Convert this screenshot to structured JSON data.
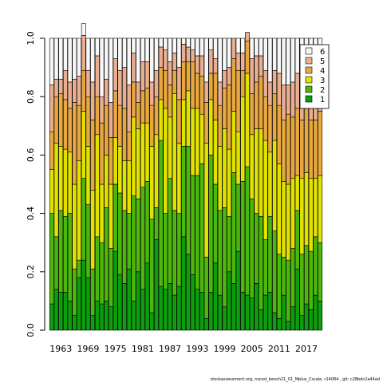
{
  "chart_data": {
    "type": "bar",
    "stacked": true,
    "x": [
      1961,
      1962,
      1963,
      1964,
      1965,
      1966,
      1967,
      1968,
      1969,
      1970,
      1971,
      1972,
      1973,
      1974,
      1975,
      1976,
      1977,
      1978,
      1979,
      1980,
      1981,
      1982,
      1983,
      1984,
      1985,
      1986,
      1987,
      1988,
      1989,
      1990,
      1991,
      1992,
      1993,
      1994,
      1995,
      1996,
      1997,
      1998,
      1999,
      2000,
      2001,
      2002,
      2003,
      2004,
      2005,
      2006,
      2007,
      2008,
      2009,
      2010,
      2011,
      2012,
      2013,
      2014,
      2015,
      2016,
      2017,
      2018,
      2019,
      2020
    ],
    "x_tick_labels": [
      "1963",
      "1969",
      "1975",
      "1981",
      "1987",
      "1993",
      "1999",
      "2005",
      "2011",
      "2017"
    ],
    "ylim": [
      0,
      1
    ],
    "y_ticks": [
      "0.0",
      "0.2",
      "0.4",
      "0.6",
      "0.8",
      "1.0"
    ],
    "legend_position": "top-right",
    "grid": false,
    "series": [
      {
        "name": "1",
        "color": "#0c9e0c",
        "values": [
          0.09,
          0.14,
          0.13,
          0.13,
          0.1,
          0.05,
          0.18,
          0.24,
          0.18,
          0.05,
          0.1,
          0.09,
          0.1,
          0.08,
          0.27,
          0.19,
          0.16,
          0.21,
          0.1,
          0.2,
          0.14,
          0.23,
          0.06,
          0.31,
          0.15,
          0.14,
          0.16,
          0.12,
          0.15,
          0.32,
          0.26,
          0.19,
          0.14,
          0.13,
          0.04,
          0.13,
          0.23,
          0.12,
          0.08,
          0.2,
          0.16,
          0.27,
          0.13,
          0.12,
          0.11,
          0.16,
          0.07,
          0.12,
          0.13,
          0.06,
          0.04,
          0.12,
          0.03,
          0.08,
          0.21,
          0.05,
          0.09,
          0.07,
          0.12,
          0.1
        ]
      },
      {
        "name": "2",
        "color": "#4db80b",
        "values": [
          0.31,
          0.18,
          0.28,
          0.26,
          0.3,
          0.16,
          0.06,
          0.28,
          0.25,
          0.16,
          0.22,
          0.21,
          0.32,
          0.2,
          0.23,
          0.28,
          0.25,
          0.19,
          0.36,
          0.25,
          0.35,
          0.28,
          0.32,
          0.11,
          0.5,
          0.26,
          0.36,
          0.29,
          0.25,
          0.31,
          0.37,
          0.34,
          0.39,
          0.44,
          0.21,
          0.47,
          0.27,
          0.29,
          0.34,
          0.19,
          0.38,
          0.23,
          0.38,
          0.44,
          0.34,
          0.24,
          0.32,
          0.19,
          0.26,
          0.28,
          0.22,
          0.13,
          0.21,
          0.2,
          0.2,
          0.21,
          0.2,
          0.2,
          0.2,
          0.2
        ]
      },
      {
        "name": "3",
        "color": "#e2e200",
        "values": [
          0.15,
          0.32,
          0.22,
          0.23,
          0.21,
          0.29,
          0.34,
          0.23,
          0.2,
          0.27,
          0.35,
          0.2,
          0.18,
          0.22,
          0.16,
          0.16,
          0.17,
          0.18,
          0.27,
          0.24,
          0.22,
          0.2,
          0.25,
          0.25,
          0.14,
          0.36,
          0.21,
          0.4,
          0.24,
          0.16,
          0.19,
          0.23,
          0.23,
          0.17,
          0.39,
          0.19,
          0.22,
          0.22,
          0.27,
          0.23,
          0.21,
          0.18,
          0.29,
          0.32,
          0.22,
          0.29,
          0.3,
          0.34,
          0.22,
          0.31,
          0.31,
          0.26,
          0.26,
          0.24,
          0.12,
          0.26,
          0.25,
          0.25,
          0.2,
          0.23
        ]
      },
      {
        "name": "4",
        "color": "#e8a840",
        "values": [
          0.13,
          0.16,
          0.18,
          0.17,
          0.15,
          0.28,
          0.19,
          0.14,
          0.17,
          0.24,
          0.13,
          0.21,
          0.17,
          0.16,
          0.16,
          0.14,
          0.18,
          0.1,
          0.12,
          0.09,
          0.11,
          0.12,
          0.14,
          0.13,
          0.11,
          0.13,
          0.11,
          0.08,
          0.15,
          0.13,
          0.1,
          0.16,
          0.12,
          0.13,
          0.14,
          0.09,
          0.16,
          0.14,
          0.14,
          0.22,
          0.18,
          0.21,
          0.09,
          0.11,
          0.14,
          0.16,
          0.18,
          0.15,
          0.16,
          0.16,
          0.2,
          0.21,
          0.24,
          0.21,
          0.23,
          0.2,
          0.22,
          0.2,
          0.2,
          0.22
        ]
      },
      {
        "name": "5",
        "color": "#eaaf90",
        "values": [
          0.16,
          0.06,
          0.05,
          0.1,
          0.09,
          0.08,
          0.1,
          0.12,
          0.09,
          0.13,
          0.14,
          0.09,
          0.09,
          0.12,
          0.11,
          0.12,
          0.14,
          0.16,
          0.1,
          0.07,
          0.1,
          0.09,
          0.08,
          0.09,
          0.07,
          0.07,
          0.08,
          0.06,
          0.11,
          0.06,
          0.05,
          0.04,
          0.06,
          0.07,
          0.07,
          0.08,
          0.05,
          0.08,
          0.06,
          0.06,
          0.07,
          0.06,
          0.06,
          0.03,
          0.12,
          0.09,
          0.07,
          0.09,
          0.08,
          0.08,
          0.11,
          0.12,
          0.1,
          0.12,
          0.12,
          0.13,
          0.1,
          0.13,
          0.12,
          0.12
        ]
      },
      {
        "name": "6",
        "color": "#f7f7f7",
        "values": [
          0.16,
          0.14,
          0.14,
          0.11,
          0.15,
          0.14,
          0.13,
          0.04,
          0.11,
          0.15,
          0.06,
          0.2,
          0.14,
          0.22,
          0.07,
          0.11,
          0.1,
          0.16,
          0.05,
          0.15,
          0.08,
          0.08,
          0.15,
          0.11,
          0.03,
          0.04,
          0.08,
          0.05,
          0.1,
          0.02,
          0.03,
          0.04,
          0.06,
          0.06,
          0.15,
          0.04,
          0.07,
          0.15,
          0.11,
          0.1,
          0.0,
          0.05,
          0.05,
          0.0,
          0.07,
          0.06,
          0.06,
          0.11,
          0.15,
          0.11,
          0.12,
          0.16,
          0.16,
          0.15,
          0.12,
          0.15,
          0.14,
          0.15,
          0.16,
          0.13
        ]
      }
    ]
  },
  "footer": {
    "note": "stockassessment.org, nscod_bench21_01_Mplus_Cscale, r14084 , git: c28bdc2a44ad"
  }
}
